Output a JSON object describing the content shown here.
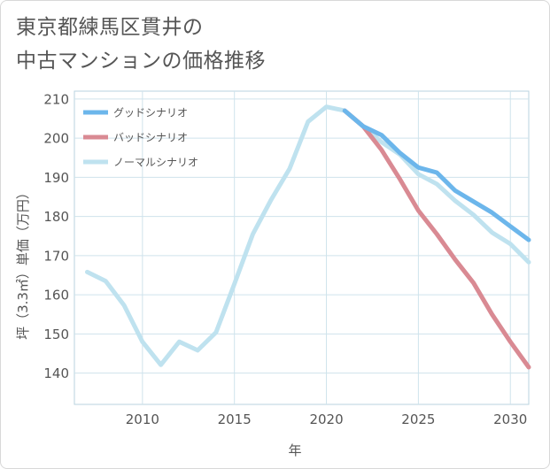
{
  "title": "東京都練馬区貫井の\n中古マンションの価格推移",
  "chart_data": {
    "type": "line",
    "title": "東京都練馬区貫井の中古マンションの価格推移",
    "xlabel": "年",
    "ylabel": "坪（3.3㎡）単価（万円）",
    "xlim": [
      2006.3,
      2031
    ],
    "ylim": [
      132,
      212
    ],
    "x_ticks": [
      2010,
      2015,
      2020,
      2025,
      2030
    ],
    "y_ticks": [
      140,
      150,
      160,
      170,
      180,
      190,
      200,
      210
    ],
    "grid": true,
    "legend_position": "top-left",
    "series": [
      {
        "name": "グッドシナリオ",
        "color": "#6cb6eb",
        "x": [
          2021,
          2022,
          2023,
          2024,
          2025,
          2026,
          2027,
          2028,
          2029,
          2030,
          2031
        ],
        "y": [
          207,
          203,
          200.8,
          196.2,
          192.5,
          191.2,
          186.6,
          183.8,
          181,
          177.5,
          174
        ]
      },
      {
        "name": "バッドシナリオ",
        "color": "#d98a93",
        "x": [
          2021,
          2022,
          2023,
          2024,
          2025,
          2026,
          2027,
          2028,
          2029,
          2030,
          2031
        ],
        "y": [
          207,
          203,
          197,
          189.5,
          181.5,
          175.5,
          169,
          163,
          155,
          148,
          141.5
        ]
      },
      {
        "name": "ノーマルシナリオ",
        "color": "#bfe2ef",
        "x": [
          2007,
          2008,
          2009,
          2010,
          2011,
          2012,
          2013,
          2014,
          2015,
          2016,
          2017,
          2018,
          2019,
          2020,
          2021,
          2022,
          2023,
          2024,
          2025,
          2026,
          2027,
          2028,
          2029,
          2030,
          2031
        ],
        "y": [
          165.8,
          163.5,
          157.3,
          148,
          142.1,
          148,
          145.8,
          150.4,
          162.8,
          175.5,
          184.3,
          192.2,
          204.2,
          208,
          207,
          203,
          199,
          195.8,
          190.8,
          188.3,
          184,
          180.4,
          175.9,
          173,
          168.3
        ]
      }
    ]
  }
}
